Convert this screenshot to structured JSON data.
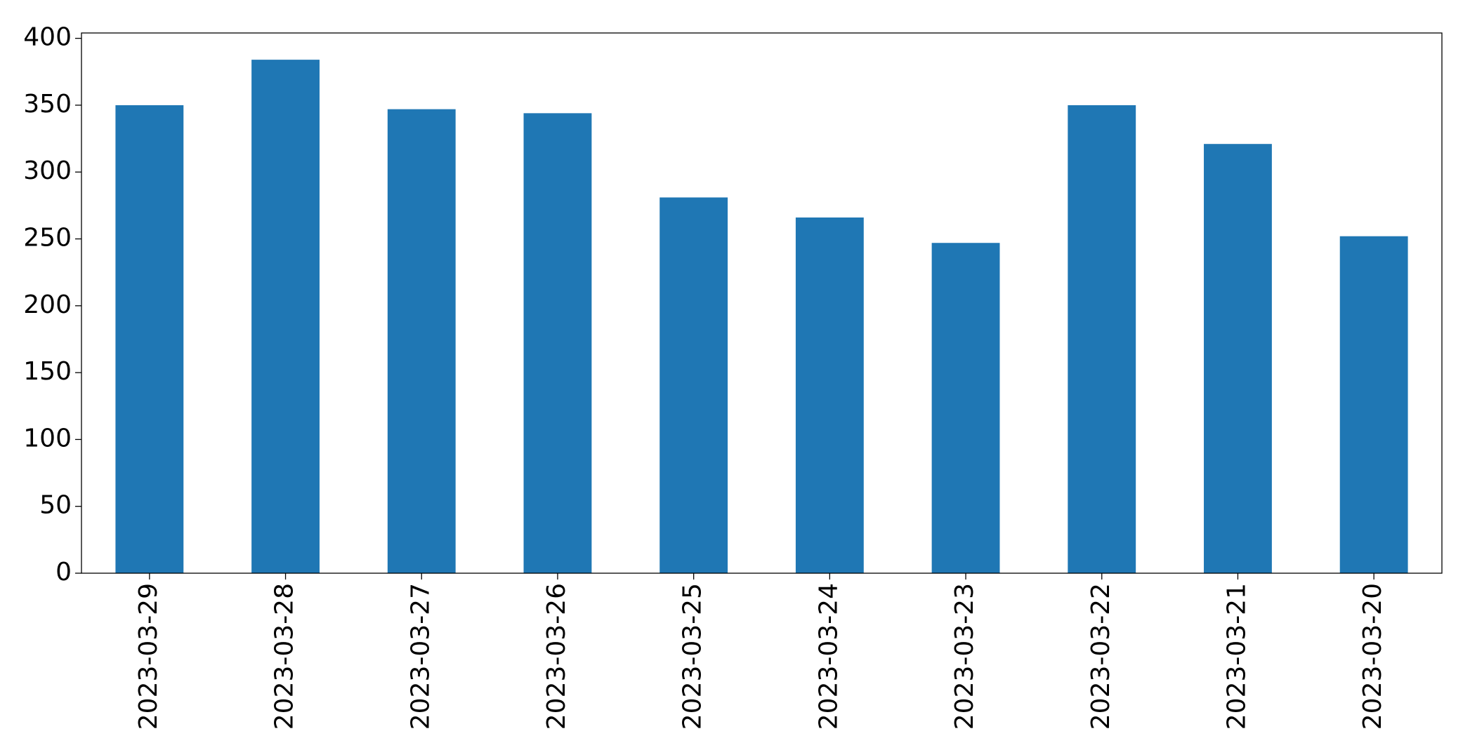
{
  "chart_data": {
    "type": "bar",
    "categories": [
      "2023-03-29",
      "2023-03-28",
      "2023-03-27",
      "2023-03-26",
      "2023-03-25",
      "2023-03-24",
      "2023-03-23",
      "2023-03-22",
      "2023-03-21",
      "2023-03-20"
    ],
    "values": [
      350,
      384,
      347,
      344,
      281,
      266,
      247,
      350,
      321,
      252
    ],
    "color": "#1f77b4",
    "ylim": [
      0,
      404
    ],
    "yticks": [
      0,
      50,
      100,
      150,
      200,
      250,
      300,
      350,
      400
    ],
    "grid": false
  }
}
